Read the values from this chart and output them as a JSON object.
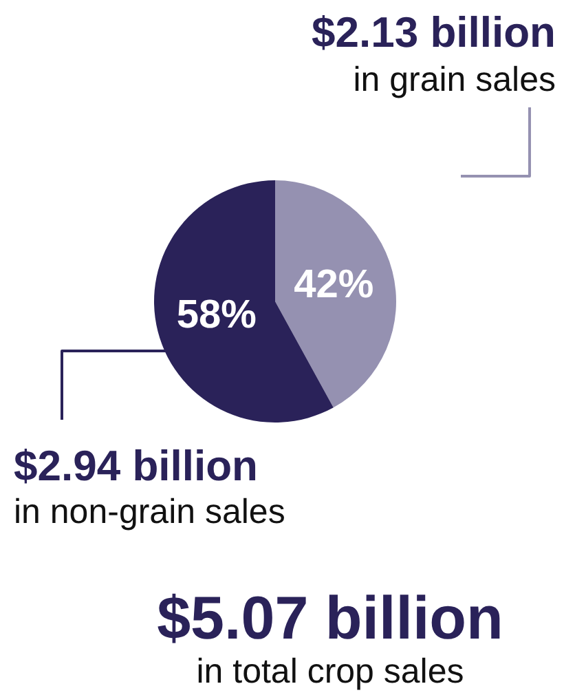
{
  "chart_data": {
    "type": "pie",
    "title": "$5.07 billion",
    "subtitle": "in total crop sales",
    "categories": [
      "in grain sales",
      "in non-grain sales"
    ],
    "values": [
      42,
      58
    ],
    "colors": [
      "#9591b1",
      "#2a2259"
    ],
    "value_labels": [
      "42%",
      "58%"
    ],
    "annotations": [
      "$2.13 billion",
      "$2.94 billion"
    ],
    "legend": false
  }
}
